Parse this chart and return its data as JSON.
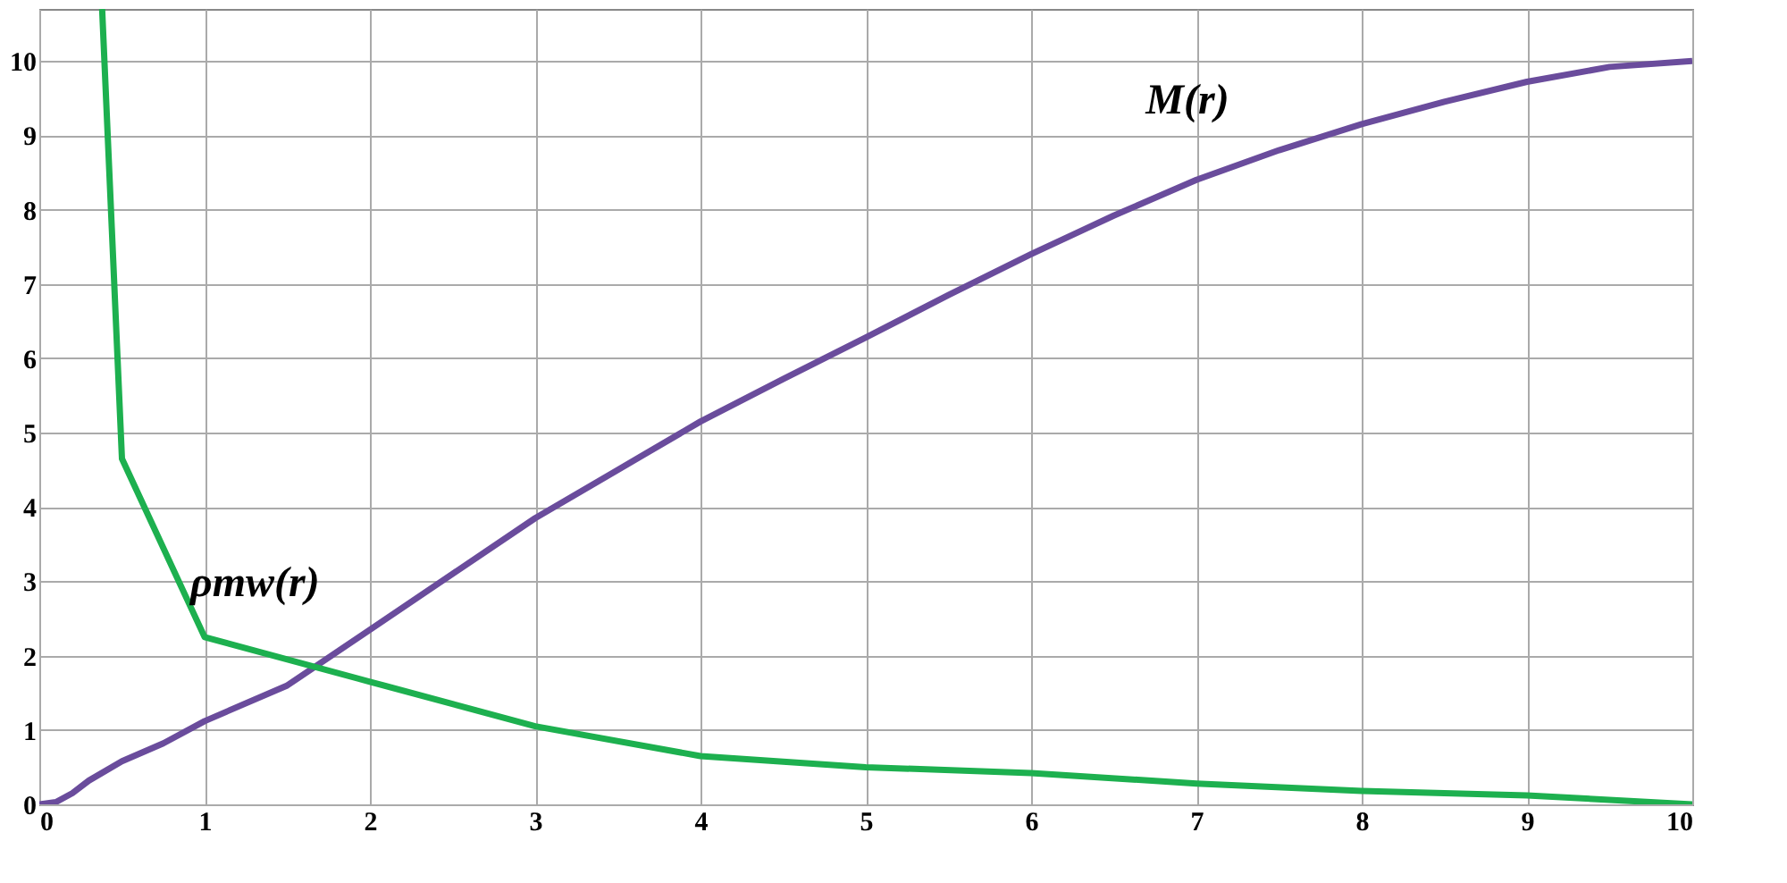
{
  "chart_data": {
    "type": "line",
    "xlim": [
      0,
      10
    ],
    "ylim": [
      0,
      10.7
    ],
    "xticks": [
      0,
      1,
      2,
      3,
      4,
      5,
      6,
      7,
      8,
      9,
      10
    ],
    "yticks": [
      0,
      1,
      2,
      3,
      4,
      5,
      6,
      7,
      8,
      9,
      10
    ],
    "grid": true,
    "marker": "none",
    "line_style": "solid",
    "series": [
      {
        "name": "M(r)",
        "color": "#6a4c9c",
        "x": [
          0,
          0.1,
          0.2,
          0.3,
          0.5,
          0.75,
          1,
          1.5,
          2,
          2.5,
          3,
          3.5,
          4,
          4.5,
          5,
          5.5,
          6,
          6.5,
          7,
          7.5,
          8,
          8.5,
          9,
          9.5,
          10
        ],
        "values": [
          0,
          0.03,
          0.15,
          0.32,
          0.58,
          0.82,
          1.12,
          1.6,
          2.35,
          3.1,
          3.85,
          4.5,
          5.15,
          5.72,
          6.28,
          6.85,
          7.4,
          7.92,
          8.4,
          8.8,
          9.15,
          9.45,
          9.72,
          9.92,
          10.0
        ]
      },
      {
        "name": "ρmw(r)",
        "color": "#1db04f",
        "x": [
          0.38,
          0.5,
          1,
          2,
          3,
          4,
          5,
          6,
          7,
          8,
          9,
          10
        ],
        "values": [
          10.7,
          4.65,
          2.25,
          1.65,
          1.05,
          0.65,
          0.5,
          0.42,
          0.28,
          0.18,
          0.12,
          0.0
        ]
      }
    ]
  }
}
